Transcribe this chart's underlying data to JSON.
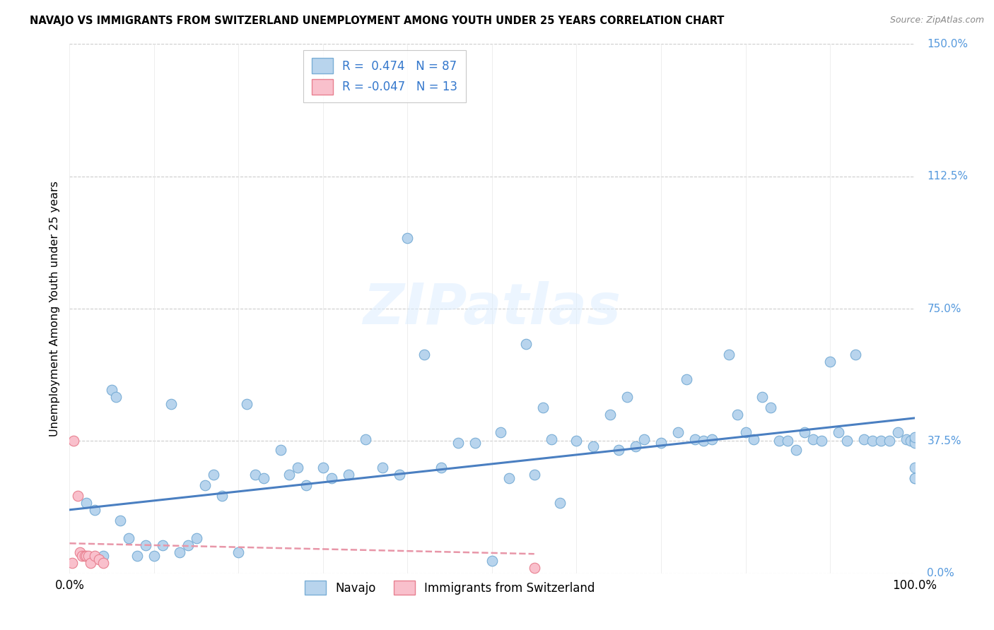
{
  "title": "NAVAJO VS IMMIGRANTS FROM SWITZERLAND UNEMPLOYMENT AMONG YOUTH UNDER 25 YEARS CORRELATION CHART",
  "source": "Source: ZipAtlas.com",
  "ylabel": "Unemployment Among Youth under 25 years",
  "ytick_values": [
    0.0,
    37.5,
    75.0,
    112.5,
    150.0
  ],
  "ytick_labels": [
    "0.0%",
    "37.5%",
    "75.0%",
    "112.5%",
    "150.0%"
  ],
  "xlim": [
    0,
    100
  ],
  "ylim": [
    0,
    150
  ],
  "legend1_label": "Navajo",
  "legend2_label": "Immigrants from Switzerland",
  "R1": 0.474,
  "N1": 87,
  "R2": -0.047,
  "N2": 13,
  "color_navajo_fill": "#b8d4ed",
  "color_navajo_edge": "#7aaed6",
  "color_swiss_fill": "#f9c0cc",
  "color_swiss_edge": "#e88090",
  "color_navajo_line": "#4a7fc1",
  "color_swiss_line": "#e896a8",
  "color_ytick": "#5599dd",
  "watermark_color": "#d8e8f0",
  "navajo_x": [
    2.0,
    3.0,
    4.0,
    5.0,
    5.5,
    6.0,
    7.0,
    8.0,
    9.0,
    10.0,
    11.0,
    12.0,
    13.0,
    14.0,
    15.0,
    16.0,
    17.0,
    18.0,
    20.0,
    21.0,
    22.0,
    23.0,
    25.0,
    26.0,
    27.0,
    28.0,
    30.0,
    31.0,
    33.0,
    35.0,
    37.0,
    39.0,
    40.0,
    42.0,
    44.0,
    46.0,
    48.0,
    50.0,
    51.0,
    52.0,
    54.0,
    55.0,
    56.0,
    57.0,
    58.0,
    60.0,
    62.0,
    64.0,
    65.0,
    66.0,
    67.0,
    68.0,
    70.0,
    72.0,
    73.0,
    74.0,
    75.0,
    76.0,
    78.0,
    79.0,
    80.0,
    81.0,
    82.0,
    83.0,
    84.0,
    85.0,
    86.0,
    87.0,
    88.0,
    89.0,
    90.0,
    91.0,
    92.0,
    93.0,
    94.0,
    95.0,
    96.0,
    97.0,
    98.0,
    99.0,
    99.5,
    100.0,
    100.0,
    100.0,
    100.0,
    100.0,
    100.0
  ],
  "navajo_y": [
    20.0,
    18.0,
    5.0,
    52.0,
    50.0,
    15.0,
    10.0,
    5.0,
    8.0,
    5.0,
    8.0,
    48.0,
    6.0,
    8.0,
    10.0,
    25.0,
    28.0,
    22.0,
    6.0,
    48.0,
    28.0,
    27.0,
    35.0,
    28.0,
    30.0,
    25.0,
    30.0,
    27.0,
    28.0,
    38.0,
    30.0,
    28.0,
    95.0,
    62.0,
    30.0,
    37.0,
    37.0,
    3.5,
    40.0,
    27.0,
    65.0,
    28.0,
    47.0,
    38.0,
    20.0,
    37.5,
    36.0,
    45.0,
    35.0,
    50.0,
    36.0,
    38.0,
    37.0,
    40.0,
    55.0,
    38.0,
    37.5,
    38.0,
    62.0,
    45.0,
    40.0,
    38.0,
    50.0,
    47.0,
    37.5,
    37.5,
    35.0,
    40.0,
    38.0,
    37.5,
    60.0,
    40.0,
    37.5,
    62.0,
    38.0,
    37.5,
    37.5,
    37.5,
    40.0,
    38.0,
    37.5,
    37.5,
    37.0,
    38.5,
    30.0,
    27.0,
    27.0
  ],
  "swiss_x": [
    0.3,
    0.5,
    1.0,
    1.2,
    1.5,
    1.8,
    2.0,
    2.2,
    2.5,
    3.0,
    3.5,
    4.0,
    55.0
  ],
  "swiss_y": [
    3.0,
    37.5,
    22.0,
    6.0,
    5.0,
    5.0,
    5.0,
    5.0,
    3.0,
    5.0,
    4.0,
    3.0,
    1.5
  ],
  "nav_line_x0": 0,
  "nav_line_x1": 100,
  "nav_line_y0": 18.0,
  "nav_line_y1": 44.0,
  "swiss_line_x0": 0,
  "swiss_line_x1": 55,
  "swiss_line_y0": 8.5,
  "swiss_line_y1": 5.5
}
